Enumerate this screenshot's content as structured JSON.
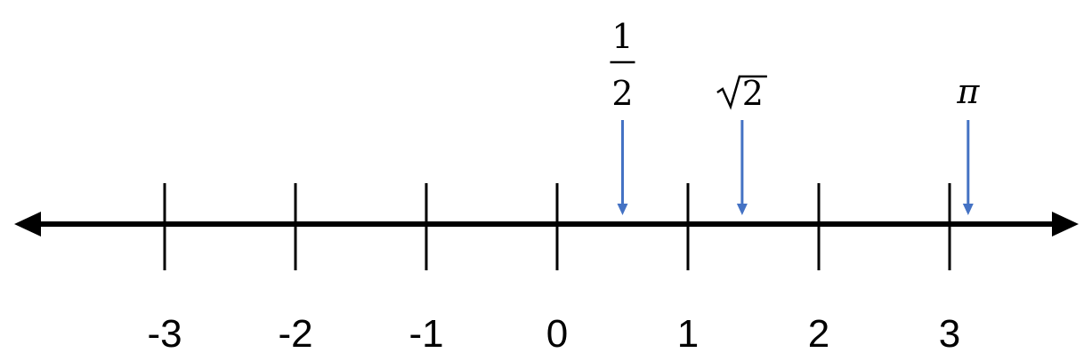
{
  "number_line": {
    "ticks": [
      {
        "value": -3,
        "label": "-3"
      },
      {
        "value": -2,
        "label": "-2"
      },
      {
        "value": -1,
        "label": "-1"
      },
      {
        "value": 0,
        "label": "0"
      },
      {
        "value": 1,
        "label": "1"
      },
      {
        "value": 2,
        "label": "2"
      },
      {
        "value": 3,
        "label": "3"
      }
    ],
    "markers": [
      {
        "id": "half",
        "value": 0.5,
        "numerator": "1",
        "denominator": "2"
      },
      {
        "id": "sqrt2",
        "value": 1.41421356,
        "radicand": "2"
      },
      {
        "id": "pi",
        "value": 3.14159265,
        "symbol": "π"
      }
    ],
    "colors": {
      "axis": "#000000",
      "marker_arrow": "#4472C4"
    }
  }
}
